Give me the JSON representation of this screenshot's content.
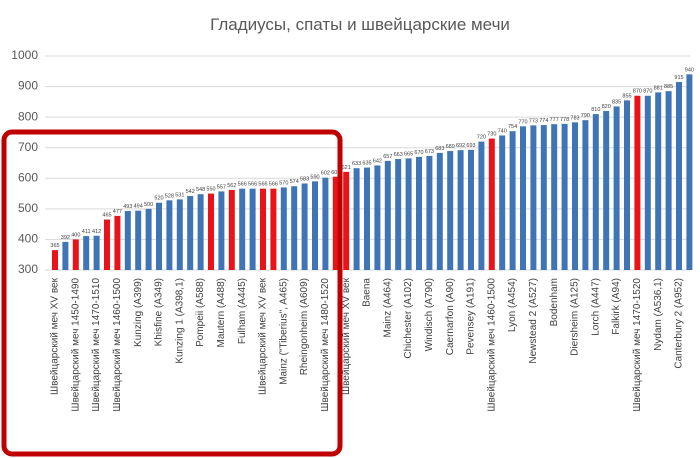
{
  "chart_data": {
    "type": "bar",
    "title": "Гладиусы, спаты и швейцарские мечи",
    "categories": [
      "Швейцарский меч XV век",
      null,
      "Швейцарский меч 1450-1490",
      null,
      "Швейцарский меч 1470-1510",
      null,
      "Швейцарский меч 1460-1500",
      null,
      "Kunzing (A399)",
      null,
      "Khisfine (A349)",
      null,
      "Kunzing 1 (A398,1)",
      null,
      "Pompeii (A588)",
      null,
      "Mautern (A488)",
      null,
      "Fulham (A445)",
      null,
      "Швейцарский меч XV век",
      null,
      "Mainz (\"Tiberius\", A465)",
      null,
      "Rheingonheim (A609)",
      null,
      "Швейцарский меч 1480-1520",
      null,
      "Швейцарский меч XV век",
      null,
      "Baena",
      null,
      "Mainz (A464)",
      null,
      "Chichester (A102)",
      null,
      "Windisch (A790)",
      null,
      "Caernarfon (A90)",
      null,
      "Pevensey (A191)",
      null,
      "Швейцарский меч 1460-1500",
      null,
      "Lyon (A454)",
      null,
      "Newstead 2 (A527)",
      null,
      "Bodenham",
      null,
      "Diersheim (A125)",
      null,
      "Lorch (A447)",
      null,
      "Falkirk (A94)",
      null,
      "Швейцарский меч 1470-1520",
      null,
      "Nydam (A536,1)",
      null,
      "Canterbury 2 (A952)",
      null
    ],
    "values": [
      365,
      392,
      400,
      411,
      412,
      465,
      477,
      493,
      494,
      500,
      520,
      528,
      531,
      542,
      548,
      550,
      557,
      562,
      566,
      566,
      566,
      566,
      570,
      574,
      583,
      590,
      602,
      605,
      621,
      633,
      635,
      642,
      657,
      663,
      665,
      670,
      673,
      683,
      689,
      692,
      693,
      720,
      730,
      740,
      754,
      770,
      773,
      774,
      777,
      778,
      783,
      790,
      810,
      820,
      835,
      855,
      870,
      870,
      881,
      885,
      915,
      940
    ],
    "colors": [
      "#e8141a",
      "#3f75b5",
      "#e8141a",
      "#3f75b5",
      "#3f75b5",
      "#e8141a",
      "#e8141a",
      "#3f75b5",
      "#3f75b5",
      "#3f75b5",
      "#3f75b5",
      "#3f75b5",
      "#3f75b5",
      "#3f75b5",
      "#3f75b5",
      "#e8141a",
      "#3f75b5",
      "#e8141a",
      "#3f75b5",
      "#3f75b5",
      "#e8141a",
      "#e8141a",
      "#3f75b5",
      "#3f75b5",
      "#3f75b5",
      "#3f75b5",
      "#3f75b5",
      "#e8141a",
      "#e8141a",
      "#3f75b5",
      "#3f75b5",
      "#3f75b5",
      "#3f75b5",
      "#3f75b5",
      "#3f75b5",
      "#3f75b5",
      "#3f75b5",
      "#3f75b5",
      "#3f75b5",
      "#3f75b5",
      "#3f75b5",
      "#3f75b5",
      "#e8141a",
      "#3f75b5",
      "#3f75b5",
      "#3f75b5",
      "#3f75b5",
      "#3f75b5",
      "#3f75b5",
      "#3f75b5",
      "#3f75b5",
      "#3f75b5",
      "#3f75b5",
      "#3f75b5",
      "#3f75b5",
      "#3f75b5",
      "#e8141a",
      "#3f75b5",
      "#3f75b5",
      "#3f75b5",
      "#3f75b5",
      "#3f75b5"
    ],
    "ylim": [
      300,
      1000
    ],
    "yticks": [
      300,
      400,
      500,
      600,
      700,
      800,
      900,
      1000
    ],
    "grid": true
  }
}
